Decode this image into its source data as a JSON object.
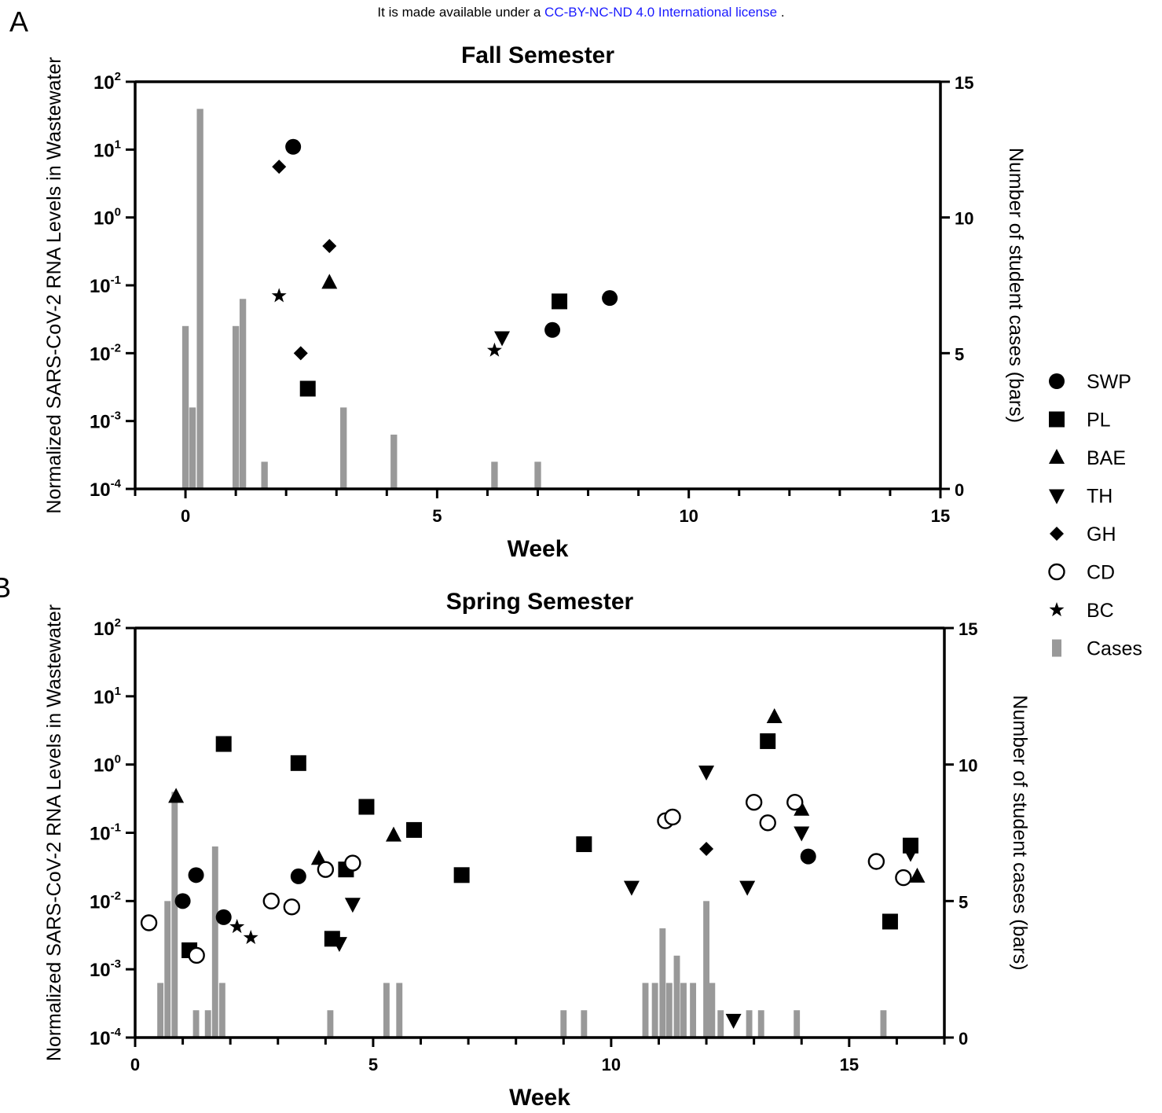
{
  "license": {
    "prefix": "It is made available under a",
    "link": "CC-BY-NC-ND 4.0 International license",
    "suffix": "."
  },
  "panel_labels": [
    "A",
    "B"
  ],
  "legend": {
    "placement": "right",
    "entries": [
      {
        "name": "SWP",
        "marker": "filled-circle"
      },
      {
        "name": "PL",
        "marker": "filled-square"
      },
      {
        "name": "BAE",
        "marker": "triangle-up"
      },
      {
        "name": "TH",
        "marker": "triangle-down"
      },
      {
        "name": "GH",
        "marker": "diamond"
      },
      {
        "name": "CD",
        "marker": "open-circle"
      },
      {
        "name": "BC",
        "marker": "star"
      },
      {
        "name": "Cases",
        "marker": "gray-bar"
      }
    ]
  },
  "colors": {
    "bars": "#999999",
    "markers": "#000000"
  },
  "chart_data": [
    {
      "type": "scatter+bar",
      "title": "Fall Semester",
      "xlabel": "Week",
      "ylabel": "Normalized SARS-CoV-2 RNA Levels in Wastewater",
      "y2label": "Number of student cases (bars)",
      "xlim": [
        -1,
        15
      ],
      "xticks": [
        "0",
        "5",
        "10",
        "15"
      ],
      "xtick_values": [
        0,
        5,
        10,
        15
      ],
      "y_scale": "log",
      "ylim": [
        0.0001,
        100
      ],
      "yticks": [
        {
          "base": "10",
          "exp": "2"
        },
        {
          "base": "10",
          "exp": "1"
        },
        {
          "base": "10",
          "exp": "0"
        },
        {
          "base": "10",
          "exp": "-1"
        },
        {
          "base": "10",
          "exp": "-2"
        },
        {
          "base": "10",
          "exp": "-3"
        },
        {
          "base": "10",
          "exp": "-4"
        }
      ],
      "ytick_values": [
        100,
        10,
        1,
        0.1,
        0.01,
        0.001,
        0.0001
      ],
      "y2lim": [
        0,
        15
      ],
      "y2ticks": [
        "15",
        "10",
        "5",
        "0"
      ],
      "y2tick_values": [
        15,
        10,
        5,
        0
      ],
      "bars": [
        {
          "x": 0.0,
          "y": 6
        },
        {
          "x": 0.14,
          "y": 3
        },
        {
          "x": 0.29,
          "y": 14
        },
        {
          "x": 1.0,
          "y": 6
        },
        {
          "x": 1.14,
          "y": 7
        },
        {
          "x": 1.57,
          "y": 1
        },
        {
          "x": 3.14,
          "y": 3
        },
        {
          "x": 4.14,
          "y": 2
        },
        {
          "x": 6.14,
          "y": 1
        },
        {
          "x": 7.0,
          "y": 1
        }
      ],
      "series": [
        {
          "name": "SWP",
          "points": [
            {
              "x": 2.14,
              "y": 11
            },
            {
              "x": 7.29,
              "y": 0.022
            },
            {
              "x": 8.43,
              "y": 0.065
            }
          ]
        },
        {
          "name": "PL",
          "points": [
            {
              "x": 2.43,
              "y": 0.003
            },
            {
              "x": 7.43,
              "y": 0.058
            }
          ]
        },
        {
          "name": "BAE",
          "points": [
            {
              "x": 2.86,
              "y": 0.11
            }
          ]
        },
        {
          "name": "TH",
          "points": [
            {
              "x": 6.29,
              "y": 0.017
            }
          ]
        },
        {
          "name": "GH",
          "points": [
            {
              "x": 1.86,
              "y": 5.6
            },
            {
              "x": 2.86,
              "y": 0.38
            },
            {
              "x": 2.29,
              "y": 0.01
            }
          ]
        },
        {
          "name": "CD",
          "points": []
        },
        {
          "name": "BC",
          "points": [
            {
              "x": 1.86,
              "y": 0.07
            },
            {
              "x": 6.14,
              "y": 0.011
            }
          ]
        }
      ]
    },
    {
      "type": "scatter+bar",
      "title": "Spring Semester",
      "xlabel": "Week",
      "ylabel": "Normalized SARS-CoV-2 RNA Levels in Wastewater",
      "y2label": "Number of student cases (bars)",
      "xlim": [
        0,
        17
      ],
      "xticks": [
        "0",
        "5",
        "10",
        "15"
      ],
      "xtick_values": [
        0,
        5,
        10,
        15
      ],
      "y_scale": "log",
      "ylim": [
        0.0001,
        100
      ],
      "yticks": [
        {
          "base": "10",
          "exp": "2"
        },
        {
          "base": "10",
          "exp": "1"
        },
        {
          "base": "10",
          "exp": "0"
        },
        {
          "base": "10",
          "exp": "-1"
        },
        {
          "base": "10",
          "exp": "-2"
        },
        {
          "base": "10",
          "exp": "-3"
        },
        {
          "base": "10",
          "exp": "-4"
        }
      ],
      "ytick_values": [
        100,
        10,
        1,
        0.1,
        0.01,
        0.001,
        0.0001
      ],
      "y2lim": [
        0,
        15
      ],
      "y2ticks": [
        "15",
        "10",
        "5",
        "0"
      ],
      "y2tick_values": [
        15,
        10,
        5,
        0
      ],
      "bars": [
        {
          "x": 0.53,
          "y": 2
        },
        {
          "x": 0.68,
          "y": 5
        },
        {
          "x": 0.83,
          "y": 9
        },
        {
          "x": 1.28,
          "y": 1
        },
        {
          "x": 1.53,
          "y": 1
        },
        {
          "x": 1.68,
          "y": 7
        },
        {
          "x": 1.83,
          "y": 2
        },
        {
          "x": 4.1,
          "y": 1
        },
        {
          "x": 5.28,
          "y": 2
        },
        {
          "x": 5.55,
          "y": 2
        },
        {
          "x": 9.0,
          "y": 1
        },
        {
          "x": 9.43,
          "y": 1
        },
        {
          "x": 10.72,
          "y": 2
        },
        {
          "x": 10.92,
          "y": 2
        },
        {
          "x": 11.08,
          "y": 4
        },
        {
          "x": 11.22,
          "y": 2
        },
        {
          "x": 11.38,
          "y": 3
        },
        {
          "x": 11.52,
          "y": 2
        },
        {
          "x": 11.72,
          "y": 2
        },
        {
          "x": 12.0,
          "y": 5
        },
        {
          "x": 12.12,
          "y": 2
        },
        {
          "x": 12.3,
          "y": 1
        },
        {
          "x": 12.9,
          "y": 1
        },
        {
          "x": 13.15,
          "y": 1
        },
        {
          "x": 13.9,
          "y": 1
        },
        {
          "x": 15.72,
          "y": 1
        }
      ],
      "series": [
        {
          "name": "SWP",
          "points": [
            {
              "x": 1.0,
              "y": 0.01
            },
            {
              "x": 1.28,
              "y": 0.024
            },
            {
              "x": 1.86,
              "y": 0.0058
            },
            {
              "x": 3.43,
              "y": 0.023
            },
            {
              "x": 14.14,
              "y": 0.045
            }
          ]
        },
        {
          "name": "PL",
          "points": [
            {
              "x": 1.14,
              "y": 0.0019
            },
            {
              "x": 1.86,
              "y": 2.0
            },
            {
              "x": 3.43,
              "y": 1.05
            },
            {
              "x": 4.14,
              "y": 0.0028
            },
            {
              "x": 4.43,
              "y": 0.029
            },
            {
              "x": 4.86,
              "y": 0.24
            },
            {
              "x": 5.86,
              "y": 0.11
            },
            {
              "x": 6.86,
              "y": 0.024
            },
            {
              "x": 9.43,
              "y": 0.068
            },
            {
              "x": 13.29,
              "y": 2.2
            },
            {
              "x": 15.86,
              "y": 0.005
            },
            {
              "x": 16.29,
              "y": 0.065
            }
          ]
        },
        {
          "name": "BAE",
          "points": [
            {
              "x": 0.86,
              "y": 0.34
            },
            {
              "x": 3.86,
              "y": 0.042
            },
            {
              "x": 5.43,
              "y": 0.092
            },
            {
              "x": 13.43,
              "y": 5.0
            },
            {
              "x": 14.0,
              "y": 0.22
            },
            {
              "x": 16.43,
              "y": 0.023
            }
          ]
        },
        {
          "name": "TH",
          "points": [
            {
              "x": 4.29,
              "y": 0.0024
            },
            {
              "x": 4.57,
              "y": 0.009
            },
            {
              "x": 10.43,
              "y": 0.016
            },
            {
              "x": 12.0,
              "y": 0.78
            },
            {
              "x": 12.57,
              "y": 0.00018
            },
            {
              "x": 12.86,
              "y": 0.016
            },
            {
              "x": 14.0,
              "y": 0.1
            },
            {
              "x": 16.29,
              "y": 0.05
            }
          ]
        },
        {
          "name": "GH",
          "points": [
            {
              "x": 12.0,
              "y": 0.058
            }
          ]
        },
        {
          "name": "CD",
          "points": [
            {
              "x": 0.29,
              "y": 0.0048
            },
            {
              "x": 1.29,
              "y": 0.0016
            },
            {
              "x": 2.86,
              "y": 0.01
            },
            {
              "x": 3.29,
              "y": 0.0082
            },
            {
              "x": 4.0,
              "y": 0.029
            },
            {
              "x": 4.57,
              "y": 0.036
            },
            {
              "x": 11.14,
              "y": 0.15
            },
            {
              "x": 11.29,
              "y": 0.17
            },
            {
              "x": 13.0,
              "y": 0.28
            },
            {
              "x": 13.29,
              "y": 0.14
            },
            {
              "x": 13.86,
              "y": 0.28
            },
            {
              "x": 15.57,
              "y": 0.038
            },
            {
              "x": 16.14,
              "y": 0.022
            }
          ]
        },
        {
          "name": "BC",
          "points": [
            {
              "x": 2.14,
              "y": 0.0042
            },
            {
              "x": 2.43,
              "y": 0.0029
            }
          ]
        }
      ]
    }
  ]
}
